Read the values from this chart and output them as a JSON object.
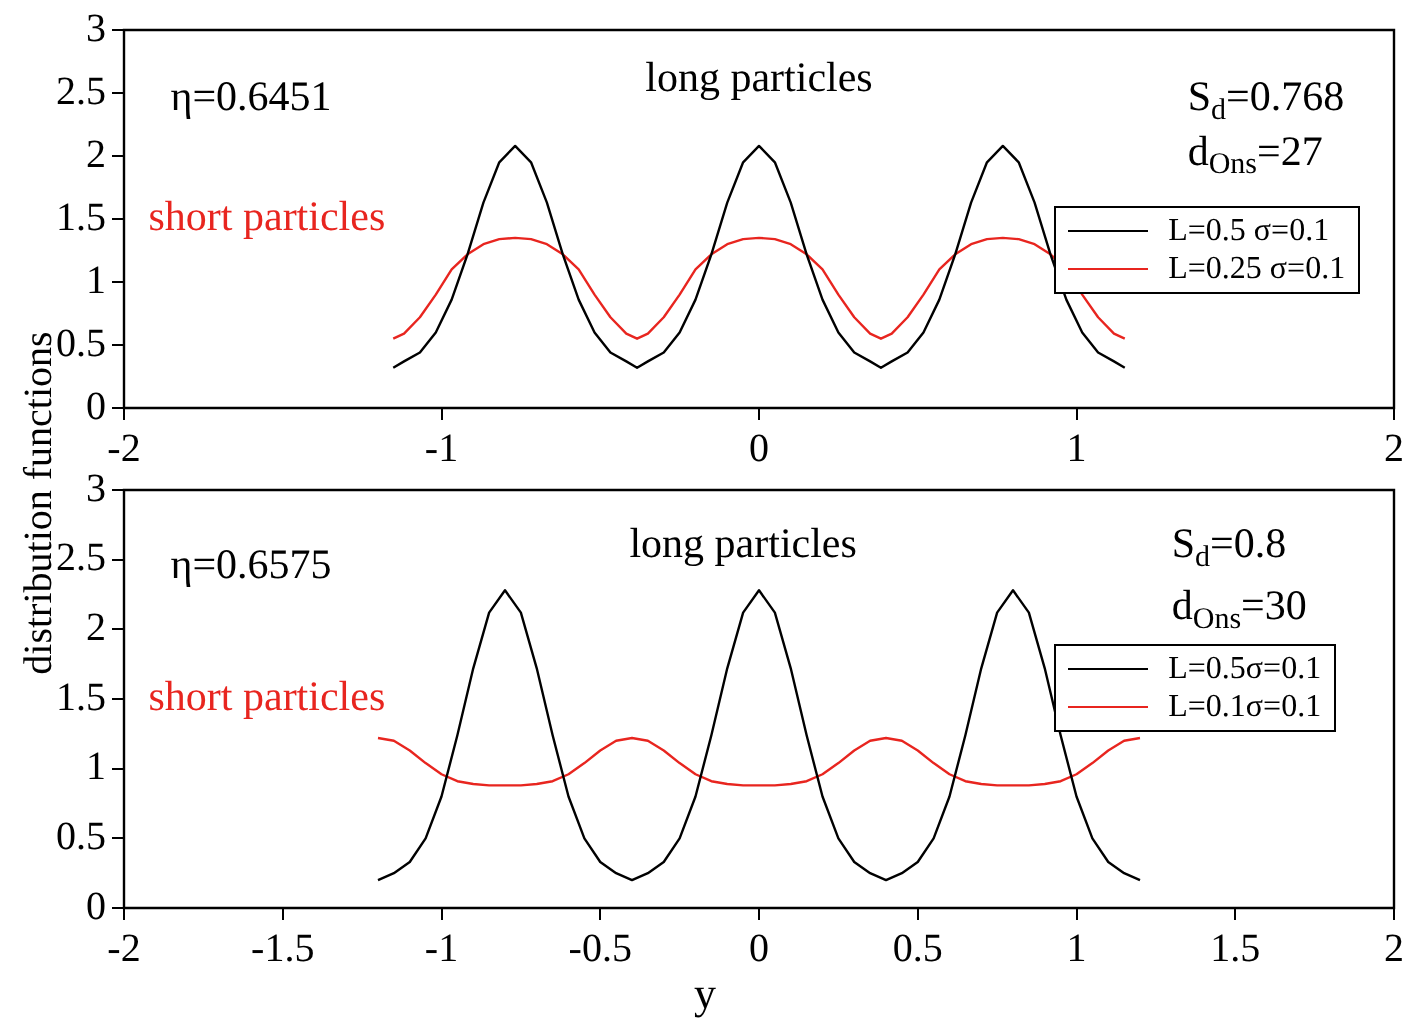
{
  "chart_data": [
    {
      "type": "line",
      "xlim": [
        -2,
        2
      ],
      "xticks": [
        -2,
        -1,
        0,
        1,
        2
      ],
      "ylim": [
        0,
        3
      ],
      "yticks": [
        0,
        {
          "value": 0.5,
          "label": "0.5"
        },
        1,
        {
          "value": 1.5,
          "label": "1.5"
        },
        2,
        {
          "value": 2.5,
          "label": "2.5"
        },
        3
      ],
      "grid": false,
      "legend": "right",
      "marker": "none",
      "line_style": "solid",
      "annotations": [
        "η=0.6451",
        "long particles",
        "short particles",
        "S$_{d}$=0.768",
        "d$_{Ons}$=27"
      ],
      "x": [
        -1.152,
        -1.118,
        -1.068,
        -1.018,
        -0.968,
        -0.918,
        -0.868,
        -0.818,
        -0.768,
        -0.718,
        -0.668,
        -0.618,
        -0.568,
        -0.518,
        -0.468,
        -0.418,
        -0.384,
        -0.35,
        -0.3,
        -0.25,
        -0.2,
        -0.15,
        -0.1,
        -0.05,
        0,
        0.05,
        0.1,
        0.15,
        0.2,
        0.25,
        0.3,
        0.35,
        0.384,
        0.418,
        0.468,
        0.518,
        0.568,
        0.618,
        0.668,
        0.718,
        0.768,
        0.818,
        0.868,
        0.918,
        0.968,
        1.018,
        1.068,
        1.118,
        1.152
      ],
      "series": [
        {
          "name": "L=0.5 σ=0.1",
          "color": "#000000",
          "values": [
            0.32,
            0.37,
            0.44,
            0.6,
            0.86,
            1.22,
            1.63,
            1.95,
            2.08,
            1.95,
            1.63,
            1.22,
            0.86,
            0.6,
            0.44,
            0.37,
            0.32,
            0.37,
            0.44,
            0.6,
            0.86,
            1.22,
            1.63,
            1.95,
            2.08,
            1.95,
            1.63,
            1.22,
            0.86,
            0.6,
            0.44,
            0.37,
            0.32,
            0.37,
            0.44,
            0.6,
            0.86,
            1.22,
            1.63,
            1.95,
            2.08,
            1.95,
            1.63,
            1.22,
            0.86,
            0.6,
            0.44,
            0.37,
            0.32
          ]
        },
        {
          "name": "L=0.25 σ=0.1",
          "color": "#e8251f",
          "values": [
            0.55,
            0.59,
            0.72,
            0.9,
            1.1,
            1.22,
            1.3,
            1.34,
            1.35,
            1.34,
            1.3,
            1.22,
            1.1,
            0.9,
            0.72,
            0.59,
            0.55,
            0.59,
            0.72,
            0.9,
            1.1,
            1.22,
            1.3,
            1.34,
            1.35,
            1.34,
            1.3,
            1.22,
            1.1,
            0.9,
            0.72,
            0.59,
            0.55,
            0.59,
            0.72,
            0.9,
            1.1,
            1.22,
            1.3,
            1.34,
            1.35,
            1.34,
            1.3,
            1.22,
            1.1,
            0.9,
            0.72,
            0.59,
            0.55
          ]
        }
      ]
    },
    {
      "type": "line",
      "xlabel": "y",
      "ylabel": "distribution functions",
      "xlim": [
        -2,
        2
      ],
      "xticks": [
        -2,
        {
          "value": -1.5,
          "label": "-1.5"
        },
        -1,
        {
          "value": -0.5,
          "label": "-0.5"
        },
        0,
        {
          "value": 0.5,
          "label": "0.5"
        },
        1,
        {
          "value": 1.5,
          "label": "1.5"
        },
        2
      ],
      "ylim": [
        0,
        3
      ],
      "yticks": [
        0,
        {
          "value": 0.5,
          "label": "0.5"
        },
        1,
        {
          "value": 1.5,
          "label": "1.5"
        },
        2,
        {
          "value": 2.5,
          "label": "2.5"
        },
        3
      ],
      "grid": false,
      "legend": "right",
      "marker": "none",
      "line_style": "solid",
      "annotations": [
        "η=0.6575",
        "long particles",
        "short particles",
        "S$_{d}$=0.8",
        "d$_{Ons}$=30"
      ],
      "x": [
        -1.2,
        -1.15,
        -1.1,
        -1.05,
        -1.0,
        -0.95,
        -0.9,
        -0.85,
        -0.8,
        -0.75,
        -0.7,
        -0.65,
        -0.6,
        -0.55,
        -0.5,
        -0.45,
        -0.4,
        -0.35,
        -0.3,
        -0.25,
        -0.2,
        -0.15,
        -0.1,
        -0.05,
        0,
        0.05,
        0.1,
        0.15,
        0.2,
        0.25,
        0.3,
        0.35,
        0.4,
        0.45,
        0.5,
        0.55,
        0.6,
        0.65,
        0.7,
        0.75,
        0.8,
        0.85,
        0.9,
        0.95,
        1.0,
        1.05,
        1.1,
        1.15,
        1.2
      ],
      "series": [
        {
          "name": "L=0.5σ=0.1",
          "color": "#000000",
          "values": [
            0.2,
            0.25,
            0.33,
            0.5,
            0.8,
            1.24,
            1.72,
            2.12,
            2.28,
            2.12,
            1.72,
            1.24,
            0.8,
            0.5,
            0.33,
            0.25,
            0.2,
            0.25,
            0.33,
            0.5,
            0.8,
            1.24,
            1.72,
            2.12,
            2.28,
            2.12,
            1.72,
            1.24,
            0.8,
            0.5,
            0.33,
            0.25,
            0.2,
            0.25,
            0.33,
            0.5,
            0.8,
            1.24,
            1.72,
            2.12,
            2.28,
            2.12,
            1.72,
            1.24,
            0.8,
            0.5,
            0.33,
            0.25,
            0.2
          ]
        },
        {
          "name": "L=0.1σ=0.1",
          "color": "#e8251f",
          "values": [
            1.22,
            1.2,
            1.13,
            1.04,
            0.96,
            0.91,
            0.89,
            0.88,
            0.88,
            0.88,
            0.89,
            0.91,
            0.96,
            1.04,
            1.13,
            1.2,
            1.22,
            1.2,
            1.13,
            1.04,
            0.96,
            0.91,
            0.89,
            0.88,
            0.88,
            0.88,
            0.89,
            0.91,
            0.96,
            1.04,
            1.13,
            1.2,
            1.22,
            1.2,
            1.13,
            1.04,
            0.96,
            0.91,
            0.89,
            0.88,
            0.88,
            0.88,
            0.89,
            0.91,
            0.96,
            1.04,
            1.13,
            1.2,
            1.22
          ]
        }
      ]
    }
  ]
}
